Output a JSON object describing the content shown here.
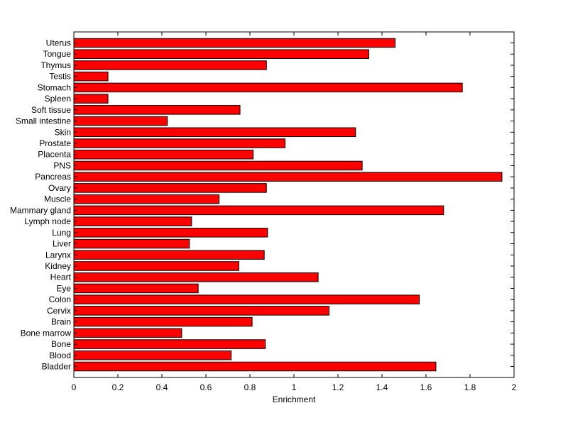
{
  "chart_data": {
    "type": "bar",
    "orientation": "horizontal",
    "categories": [
      "Uterus",
      "Tongue",
      "Thymus",
      "Testis",
      "Stomach",
      "Spleen",
      "Soft tissue",
      "Small intestine",
      "Skin",
      "Prostate",
      "Placenta",
      "PNS",
      "Pancreas",
      "Ovary",
      "Muscle",
      "Mammary gland",
      "Lymph node",
      "Lung",
      "Liver",
      "Larynx",
      "Kidney",
      "Heart",
      "Eye",
      "Colon",
      "Cervix",
      "Brain",
      "Bone marrow",
      "Bone",
      "Blood",
      "Bladder"
    ],
    "values": [
      1.46,
      1.34,
      0.875,
      0.155,
      1.765,
      0.155,
      0.755,
      0.425,
      1.28,
      0.96,
      0.815,
      1.31,
      1.945,
      0.875,
      0.66,
      1.68,
      0.535,
      0.88,
      0.525,
      0.865,
      0.75,
      1.11,
      0.565,
      1.57,
      1.16,
      0.81,
      0.49,
      0.87,
      0.715,
      1.645
    ],
    "xlabel": "Enrichment",
    "ylabel": "",
    "xlim": [
      0,
      2
    ],
    "xticks": [
      "0",
      "0.2",
      "0.4",
      "0.6",
      "0.8",
      "1",
      "1.2",
      "1.4",
      "1.6",
      "1.8",
      "2"
    ],
    "bar_color": "#ff0000",
    "bar_edge_color": "#000000",
    "grid": false,
    "legend": "none"
  }
}
